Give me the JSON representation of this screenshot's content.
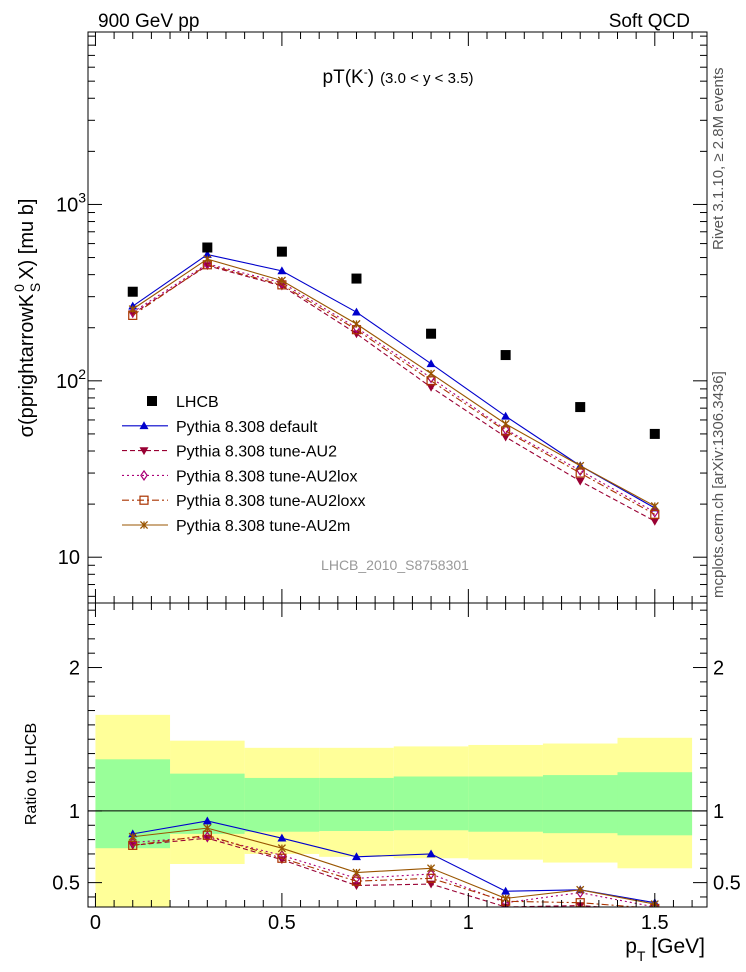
{
  "header": {
    "left_label": "900 GeV pp",
    "right_label": "Soft QCD"
  },
  "side_labels": {
    "upper": "Rivet 3.1.10, ≥ 2.8M events",
    "lower": "mcplots.cern.ch [arXiv:1306.3436]"
  },
  "watermark": "LHCB_2010_S8758301",
  "chart_data": [
    {
      "type": "line",
      "title_main": "pT(K",
      "title_sup": "-",
      "title_close": ")",
      "title_extra": "(3.0 < y < 3.5)",
      "ylabel": "σ(pprightarrowK",
      "ylabel_sup": "0",
      "ylabel_sub": "S",
      "ylabel_tail": "X) [mu b]",
      "yscale": "log",
      "ylim": [
        5.5,
        9500
      ],
      "xlim": [
        -0.02,
        1.64
      ],
      "yticks": [
        {
          "value": 10,
          "label": "10"
        },
        {
          "value": 100,
          "label": "10",
          "sup": "2"
        },
        {
          "value": 1000,
          "label": "10",
          "sup": "3"
        }
      ],
      "legend_position": "bottom-left",
      "x": [
        0.1,
        0.3,
        0.5,
        0.7,
        0.9,
        1.1,
        1.3,
        1.5
      ],
      "reference": {
        "name": "LHCB",
        "color": "#000000",
        "values": [
          320,
          570,
          540,
          380,
          185,
          140,
          71,
          50
        ]
      },
      "series": [
        {
          "name": "Pythia 8.308 default",
          "color": "#0000cc",
          "marker": "triangle-up",
          "dash": "",
          "values": [
            265,
            520,
            420,
            245,
            125,
            63,
            33,
            19
          ]
        },
        {
          "name": "Pythia 8.308 tune-AU2",
          "color": "#990033",
          "marker": "triangle-down",
          "dash": "5,3",
          "values": [
            240,
            450,
            345,
            185,
            92,
            48,
            27,
            16
          ]
        },
        {
          "name": "Pythia 8.308 tune-AU2lox",
          "color": "#aa0077",
          "marker": "diamond-open",
          "dash": "2,3",
          "values": [
            245,
            460,
            360,
            200,
            104,
            53,
            31,
            18
          ]
        },
        {
          "name": "Pythia 8.308 tune-AU2loxx",
          "color": "#aa3300",
          "marker": "square-open",
          "dash": "7,3,2,3",
          "values": [
            235,
            455,
            350,
            195,
            100,
            52,
            30,
            17.5
          ]
        },
        {
          "name": "Pythia 8.308 tune-AU2m",
          "color": "#995500",
          "marker": "star",
          "dash": "",
          "values": [
            255,
            490,
            370,
            210,
            110,
            57,
            33,
            19.5
          ]
        }
      ]
    },
    {
      "type": "line",
      "ylabel": "Ratio to LHCB",
      "xlabel_main": "p",
      "xlabel_sub": "T",
      "xlabel_tail": " [GeV]",
      "ylim": [
        0.33,
        2.45
      ],
      "xlim": [
        -0.02,
        1.64
      ],
      "yticks": [
        {
          "value": 0.5,
          "label": "0.5"
        },
        {
          "value": 1,
          "label": "1"
        },
        {
          "value": 2,
          "label": "2"
        }
      ],
      "xticks": [
        {
          "value": 0,
          "label": "0"
        },
        {
          "value": 0.5,
          "label": "0.5"
        },
        {
          "value": 1,
          "label": "1"
        },
        {
          "value": 1.5,
          "label": "1.5"
        }
      ],
      "bands": {
        "bins": [
          [
            0,
            0.2
          ],
          [
            0.2,
            0.4
          ],
          [
            0.4,
            0.6
          ],
          [
            0.6,
            0.8
          ],
          [
            0.8,
            1.0
          ],
          [
            1.0,
            1.2
          ],
          [
            1.2,
            1.4
          ],
          [
            1.4,
            1.6
          ]
        ],
        "green_color": "#99ff99",
        "yellow_color": "#ffff99",
        "green_lo": [
          0.74,
          0.84,
          0.855,
          0.86,
          0.865,
          0.855,
          0.845,
          0.83
        ],
        "green_hi": [
          1.36,
          1.26,
          1.23,
          1.23,
          1.24,
          1.24,
          1.25,
          1.27
        ],
        "yellow_lo": [
          0.2,
          0.63,
          0.7,
          0.68,
          0.67,
          0.66,
          0.64,
          0.6
        ],
        "yellow_hi": [
          1.67,
          1.49,
          1.44,
          1.44,
          1.45,
          1.46,
          1.47,
          1.51
        ]
      },
      "series": [
        {
          "name": "Pythia 8.308 default",
          "values": [
            0.84,
            0.93,
            0.81,
            0.68,
            0.7,
            0.44,
            0.45,
            0.36
          ]
        },
        {
          "name": "Pythia 8.308 tune-AU2",
          "values": [
            0.76,
            0.81,
            0.66,
            0.48,
            0.49,
            0.33,
            0.34,
            0.3
          ]
        },
        {
          "name": "Pythia 8.308 tune-AU2lox",
          "values": [
            0.78,
            0.82,
            0.69,
            0.53,
            0.56,
            0.36,
            0.43,
            0.33
          ]
        },
        {
          "name": "Pythia 8.308 tune-AU2loxx",
          "values": [
            0.76,
            0.83,
            0.67,
            0.51,
            0.53,
            0.37,
            0.36,
            0.32
          ]
        },
        {
          "name": "Pythia 8.308 tune-AU2m",
          "values": [
            0.82,
            0.88,
            0.74,
            0.57,
            0.6,
            0.39,
            0.45,
            0.35
          ]
        }
      ]
    }
  ]
}
